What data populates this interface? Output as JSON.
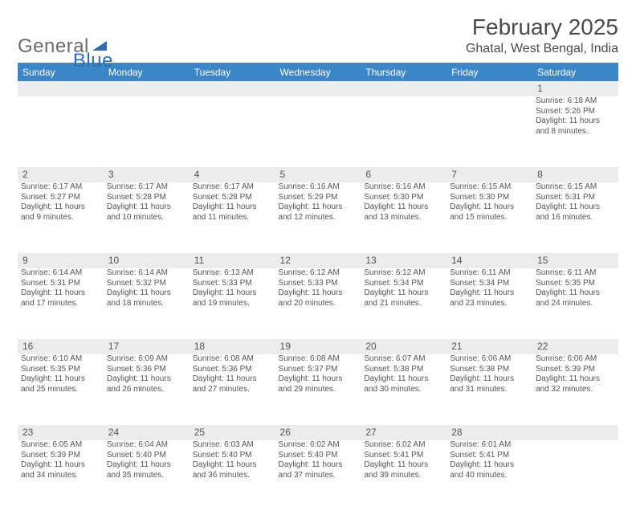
{
  "logo": {
    "text_gray": "General",
    "text_blue": "Blue",
    "triangle_color": "#2f6fb0"
  },
  "header": {
    "month_title": "February 2025",
    "location": "Ghatal, West Bengal, India"
  },
  "colors": {
    "header_bar": "#3b86c6",
    "daynum_bg": "#ececec",
    "rule": "#7a7a7a",
    "text": "#4a4a4a"
  },
  "weekdays": [
    "Sunday",
    "Monday",
    "Tuesday",
    "Wednesday",
    "Thursday",
    "Friday",
    "Saturday"
  ],
  "weeks": [
    [
      null,
      null,
      null,
      null,
      null,
      null,
      {
        "n": "1",
        "sr": "Sunrise: 6:18 AM",
        "ss": "Sunset: 5:26 PM",
        "d1": "Daylight: 11 hours",
        "d2": "and 8 minutes."
      }
    ],
    [
      {
        "n": "2",
        "sr": "Sunrise: 6:17 AM",
        "ss": "Sunset: 5:27 PM",
        "d1": "Daylight: 11 hours",
        "d2": "and 9 minutes."
      },
      {
        "n": "3",
        "sr": "Sunrise: 6:17 AM",
        "ss": "Sunset: 5:28 PM",
        "d1": "Daylight: 11 hours",
        "d2": "and 10 minutes."
      },
      {
        "n": "4",
        "sr": "Sunrise: 6:17 AM",
        "ss": "Sunset: 5:28 PM",
        "d1": "Daylight: 11 hours",
        "d2": "and 11 minutes."
      },
      {
        "n": "5",
        "sr": "Sunrise: 6:16 AM",
        "ss": "Sunset: 5:29 PM",
        "d1": "Daylight: 11 hours",
        "d2": "and 12 minutes."
      },
      {
        "n": "6",
        "sr": "Sunrise: 6:16 AM",
        "ss": "Sunset: 5:30 PM",
        "d1": "Daylight: 11 hours",
        "d2": "and 13 minutes."
      },
      {
        "n": "7",
        "sr": "Sunrise: 6:15 AM",
        "ss": "Sunset: 5:30 PM",
        "d1": "Daylight: 11 hours",
        "d2": "and 15 minutes."
      },
      {
        "n": "8",
        "sr": "Sunrise: 6:15 AM",
        "ss": "Sunset: 5:31 PM",
        "d1": "Daylight: 11 hours",
        "d2": "and 16 minutes."
      }
    ],
    [
      {
        "n": "9",
        "sr": "Sunrise: 6:14 AM",
        "ss": "Sunset: 5:31 PM",
        "d1": "Daylight: 11 hours",
        "d2": "and 17 minutes."
      },
      {
        "n": "10",
        "sr": "Sunrise: 6:14 AM",
        "ss": "Sunset: 5:32 PM",
        "d1": "Daylight: 11 hours",
        "d2": "and 18 minutes."
      },
      {
        "n": "11",
        "sr": "Sunrise: 6:13 AM",
        "ss": "Sunset: 5:33 PM",
        "d1": "Daylight: 11 hours",
        "d2": "and 19 minutes."
      },
      {
        "n": "12",
        "sr": "Sunrise: 6:12 AM",
        "ss": "Sunset: 5:33 PM",
        "d1": "Daylight: 11 hours",
        "d2": "and 20 minutes."
      },
      {
        "n": "13",
        "sr": "Sunrise: 6:12 AM",
        "ss": "Sunset: 5:34 PM",
        "d1": "Daylight: 11 hours",
        "d2": "and 21 minutes."
      },
      {
        "n": "14",
        "sr": "Sunrise: 6:11 AM",
        "ss": "Sunset: 5:34 PM",
        "d1": "Daylight: 11 hours",
        "d2": "and 23 minutes."
      },
      {
        "n": "15",
        "sr": "Sunrise: 6:11 AM",
        "ss": "Sunset: 5:35 PM",
        "d1": "Daylight: 11 hours",
        "d2": "and 24 minutes."
      }
    ],
    [
      {
        "n": "16",
        "sr": "Sunrise: 6:10 AM",
        "ss": "Sunset: 5:35 PM",
        "d1": "Daylight: 11 hours",
        "d2": "and 25 minutes."
      },
      {
        "n": "17",
        "sr": "Sunrise: 6:09 AM",
        "ss": "Sunset: 5:36 PM",
        "d1": "Daylight: 11 hours",
        "d2": "and 26 minutes."
      },
      {
        "n": "18",
        "sr": "Sunrise: 6:08 AM",
        "ss": "Sunset: 5:36 PM",
        "d1": "Daylight: 11 hours",
        "d2": "and 27 minutes."
      },
      {
        "n": "19",
        "sr": "Sunrise: 6:08 AM",
        "ss": "Sunset: 5:37 PM",
        "d1": "Daylight: 11 hours",
        "d2": "and 29 minutes."
      },
      {
        "n": "20",
        "sr": "Sunrise: 6:07 AM",
        "ss": "Sunset: 5:38 PM",
        "d1": "Daylight: 11 hours",
        "d2": "and 30 minutes."
      },
      {
        "n": "21",
        "sr": "Sunrise: 6:06 AM",
        "ss": "Sunset: 5:38 PM",
        "d1": "Daylight: 11 hours",
        "d2": "and 31 minutes."
      },
      {
        "n": "22",
        "sr": "Sunrise: 6:06 AM",
        "ss": "Sunset: 5:39 PM",
        "d1": "Daylight: 11 hours",
        "d2": "and 32 minutes."
      }
    ],
    [
      {
        "n": "23",
        "sr": "Sunrise: 6:05 AM",
        "ss": "Sunset: 5:39 PM",
        "d1": "Daylight: 11 hours",
        "d2": "and 34 minutes."
      },
      {
        "n": "24",
        "sr": "Sunrise: 6:04 AM",
        "ss": "Sunset: 5:40 PM",
        "d1": "Daylight: 11 hours",
        "d2": "and 35 minutes."
      },
      {
        "n": "25",
        "sr": "Sunrise: 6:03 AM",
        "ss": "Sunset: 5:40 PM",
        "d1": "Daylight: 11 hours",
        "d2": "and 36 minutes."
      },
      {
        "n": "26",
        "sr": "Sunrise: 6:02 AM",
        "ss": "Sunset: 5:40 PM",
        "d1": "Daylight: 11 hours",
        "d2": "and 37 minutes."
      },
      {
        "n": "27",
        "sr": "Sunrise: 6:02 AM",
        "ss": "Sunset: 5:41 PM",
        "d1": "Daylight: 11 hours",
        "d2": "and 39 minutes."
      },
      {
        "n": "28",
        "sr": "Sunrise: 6:01 AM",
        "ss": "Sunset: 5:41 PM",
        "d1": "Daylight: 11 hours",
        "d2": "and 40 minutes."
      },
      null
    ]
  ]
}
